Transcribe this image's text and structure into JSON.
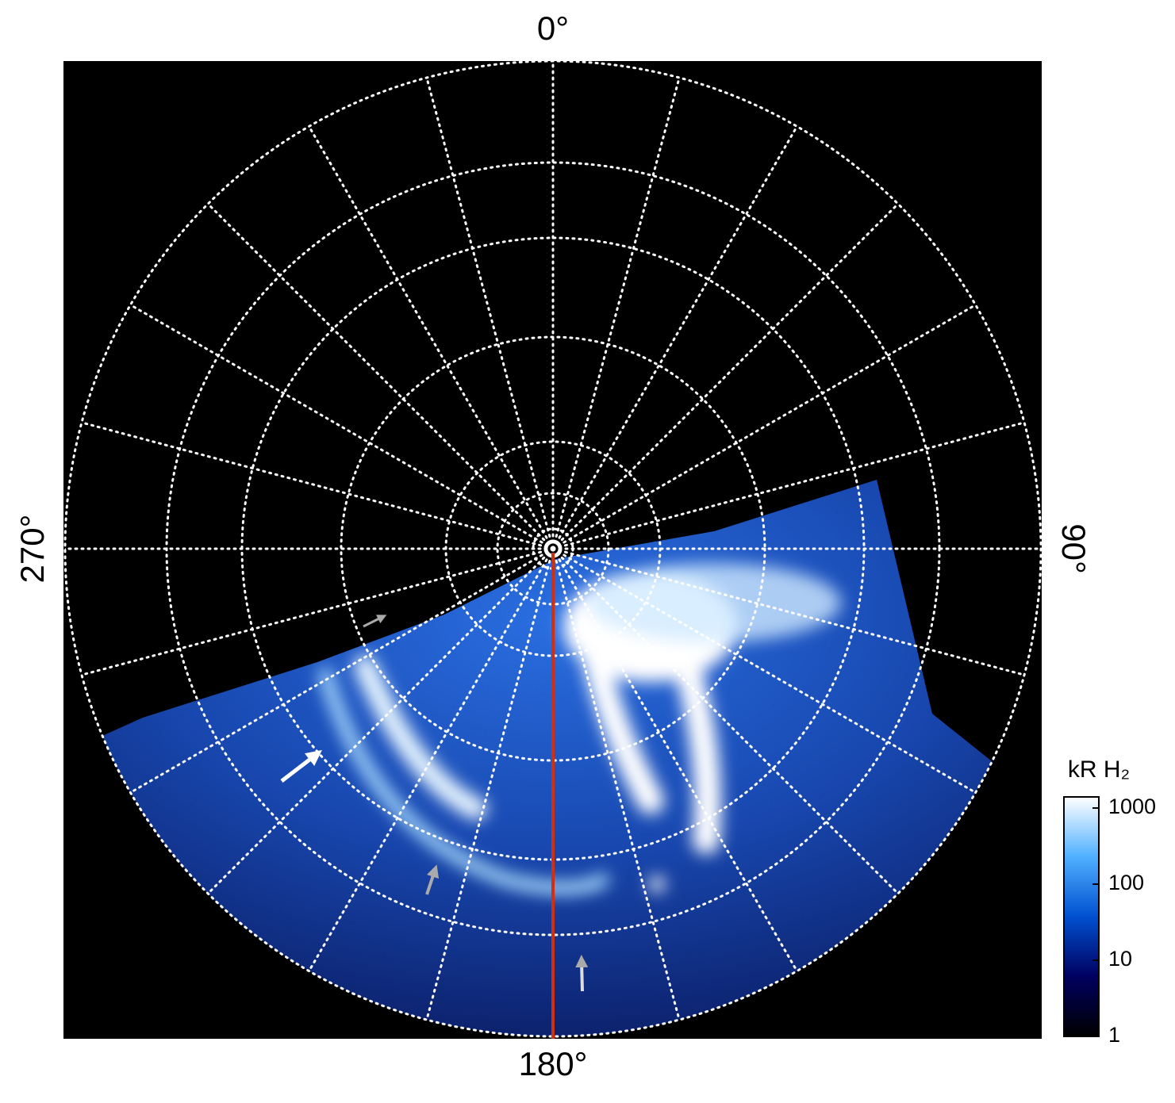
{
  "chart_data": {
    "type": "polar-image",
    "thetaticks": [
      {
        "value": 0,
        "label": "0°"
      },
      {
        "value": 90,
        "label": "90°"
      },
      {
        "value": 180,
        "label": "180°"
      },
      {
        "value": 270,
        "label": "270°"
      }
    ],
    "colorbar": {
      "label": "kR H₂",
      "log": true,
      "clim": [
        1,
        1400
      ],
      "ticks": [
        1,
        10,
        100,
        1000
      ],
      "colormap": [
        "#000000",
        "#000060",
        "#0050d0",
        "#50b0ff",
        "#ffffff"
      ]
    },
    "grid": true
  }
}
